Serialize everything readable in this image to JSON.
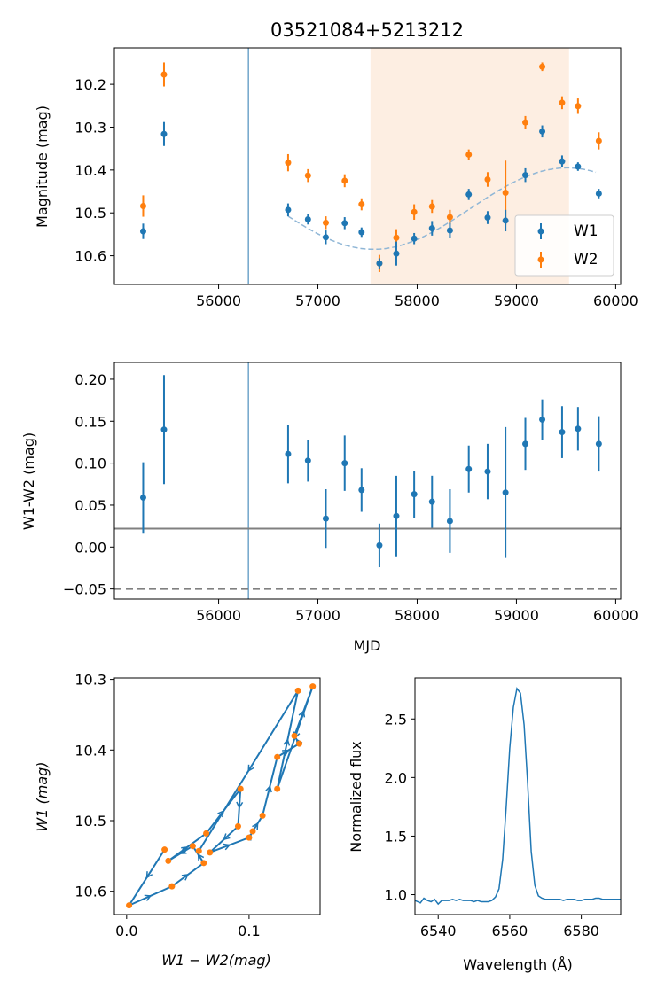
{
  "colors": {
    "w1": "#1f77b4",
    "w2": "#ff7f0e",
    "shade": "#fdeee2",
    "vline": "#4d8fbd",
    "ref_line": "#808080",
    "fit": "#8fb6d6"
  },
  "chart_data": [
    {
      "type": "scatter",
      "title": "03521084+5213212",
      "xlabel": "",
      "ylabel": "Magnitude (mag)",
      "xlim": [
        54950,
        60050
      ],
      "ylim": [
        10.667,
        10.115
      ],
      "y_inverted": true,
      "xticks": [
        56000,
        57000,
        58000,
        59000,
        60000
      ],
      "yticks": [
        10.2,
        10.3,
        10.4,
        10.5,
        10.6
      ],
      "ytick_labels": [
        "10.2",
        "10.3",
        "10.4",
        "10.5",
        "10.6"
      ],
      "legend_position": "lower right",
      "shaded_x_range": [
        57530,
        59530
      ],
      "vertical_line_x": 56300,
      "fit_curve": {
        "style": "dashed",
        "x_start": 56700,
        "x_end": 59800,
        "mid": 10.49,
        "amplitude": 0.095,
        "period": 3900,
        "phase_x": 57560
      },
      "series": [
        {
          "name": "W1",
          "x": [
            55240,
            55450,
            56700,
            56900,
            57080,
            57270,
            57440,
            57620,
            57790,
            57970,
            58150,
            58330,
            58520,
            58710,
            58890,
            59090,
            59260,
            59460,
            59620,
            59830
          ],
          "y": [
            10.543,
            10.316,
            10.493,
            10.515,
            10.557,
            10.524,
            10.545,
            10.618,
            10.595,
            10.56,
            10.536,
            10.541,
            10.457,
            10.511,
            10.518,
            10.412,
            10.31,
            10.38,
            10.392,
            10.455
          ],
          "yerr": [
            0.018,
            0.028,
            0.015,
            0.012,
            0.016,
            0.014,
            0.011,
            0.012,
            0.028,
            0.013,
            0.017,
            0.018,
            0.013,
            0.015,
            0.025,
            0.016,
            0.014,
            0.014,
            0.01,
            0.011
          ]
        },
        {
          "name": "W2",
          "x": [
            55240,
            55450,
            56700,
            56900,
            57080,
            57270,
            57440,
            57620,
            57790,
            57970,
            58150,
            58330,
            58520,
            58710,
            58890,
            59090,
            59260,
            59460,
            59620,
            59830
          ],
          "y": [
            10.484,
            10.177,
            10.383,
            10.413,
            10.523,
            10.425,
            10.48,
            10.618,
            10.558,
            10.498,
            10.485,
            10.51,
            10.364,
            10.422,
            10.453,
            10.289,
            10.159,
            10.243,
            10.251,
            10.332
          ],
          "yerr": [
            0.025,
            0.028,
            0.02,
            0.015,
            0.015,
            0.015,
            0.014,
            0.02,
            0.02,
            0.018,
            0.015,
            0.017,
            0.012,
            0.017,
            0.075,
            0.015,
            0.01,
            0.015,
            0.018,
            0.02
          ]
        }
      ]
    },
    {
      "type": "scatter",
      "title": "",
      "xlabel": "MJD",
      "ylabel": "W1-W2 (mag)",
      "xlim": [
        54950,
        60050
      ],
      "ylim": [
        -0.062,
        0.22
      ],
      "xticks": [
        56000,
        57000,
        58000,
        59000,
        60000
      ],
      "yticks": [
        -0.05,
        0.0,
        0.05,
        0.1,
        0.15,
        0.2
      ],
      "ytick_labels": [
        "−0.05",
        "0.00",
        "0.05",
        "0.10",
        "0.15",
        "0.20"
      ],
      "vertical_line_x": 56300,
      "hline_solid_y": 0.022,
      "hline_dashed_y": -0.05,
      "series": [
        {
          "name": "",
          "x": [
            55240,
            55450,
            56700,
            56900,
            57080,
            57270,
            57440,
            57620,
            57790,
            57970,
            58150,
            58330,
            58520,
            58710,
            58890,
            59090,
            59260,
            59460,
            59620,
            59830
          ],
          "y": [
            0.059,
            0.14,
            0.111,
            0.103,
            0.034,
            0.1,
            0.068,
            0.002,
            0.037,
            0.063,
            0.054,
            0.031,
            0.093,
            0.09,
            0.065,
            0.123,
            0.152,
            0.137,
            0.141,
            0.123
          ],
          "yerr": [
            0.042,
            0.065,
            0.035,
            0.025,
            0.035,
            0.033,
            0.026,
            0.026,
            0.048,
            0.028,
            0.031,
            0.038,
            0.028,
            0.033,
            0.078,
            0.031,
            0.024,
            0.031,
            0.026,
            0.033
          ]
        }
      ]
    },
    {
      "type": "line",
      "title": "",
      "xlabel": "W1 − W2(mag)",
      "ylabel": "W1 (mag)",
      "xlim": [
        -0.01,
        0.158
      ],
      "ylim": [
        10.633,
        10.298
      ],
      "y_inverted": true,
      "xticks": [
        0.0,
        0.1
      ],
      "xtick_labels": [
        "0.0",
        "0.1"
      ],
      "yticks": [
        10.3,
        10.4,
        10.5,
        10.6
      ],
      "ytick_labels": [
        "10.3",
        "10.4",
        "10.5",
        "10.6"
      ],
      "points": [
        {
          "x": 0.031,
          "y": 10.541
        },
        {
          "x": 0.002,
          "y": 10.62
        },
        {
          "x": 0.037,
          "y": 10.593
        },
        {
          "x": 0.063,
          "y": 10.56
        },
        {
          "x": 0.054,
          "y": 10.536
        },
        {
          "x": 0.034,
          "y": 10.557
        },
        {
          "x": 0.065,
          "y": 10.518
        },
        {
          "x": 0.093,
          "y": 10.455
        },
        {
          "x": 0.091,
          "y": 10.508
        },
        {
          "x": 0.068,
          "y": 10.545
        },
        {
          "x": 0.1,
          "y": 10.524
        },
        {
          "x": 0.103,
          "y": 10.515
        },
        {
          "x": 0.111,
          "y": 10.493
        },
        {
          "x": 0.123,
          "y": 10.41
        },
        {
          "x": 0.141,
          "y": 10.391
        },
        {
          "x": 0.137,
          "y": 10.38
        },
        {
          "x": 0.152,
          "y": 10.31
        },
        {
          "x": 0.123,
          "y": 10.455
        },
        {
          "x": 0.14,
          "y": 10.316
        },
        {
          "x": 0.059,
          "y": 10.543
        }
      ]
    },
    {
      "type": "line",
      "title": "",
      "xlabel": "Wavelength (Å)",
      "ylabel": "Normalized flux",
      "xlim": [
        6533.5,
        6591
      ],
      "ylim": [
        0.83,
        2.85
      ],
      "xticks": [
        6540,
        6560,
        6580
      ],
      "yticks": [
        1.0,
        1.5,
        2.0,
        2.5
      ],
      "ytick_labels": [
        "1.0",
        "1.5",
        "2.0",
        "2.5"
      ],
      "x": [
        6533.5,
        6535,
        6536,
        6537,
        6538,
        6539,
        6540,
        6541,
        6542,
        6543,
        6544,
        6545,
        6546,
        6547,
        6548,
        6549,
        6550,
        6551,
        6552,
        6553,
        6554,
        6555,
        6556,
        6557,
        6558,
        6559,
        6560,
        6561,
        6562,
        6563,
        6564,
        6565,
        6566,
        6567,
        6568,
        6569,
        6570,
        6571,
        6572,
        6573,
        6574,
        6575,
        6576,
        6577,
        6578,
        6579,
        6580,
        6581,
        6582,
        6583,
        6584,
        6585,
        6586,
        6587,
        6588,
        6589,
        6590,
        6591
      ],
      "y": [
        0.95,
        0.93,
        0.97,
        0.95,
        0.94,
        0.96,
        0.92,
        0.95,
        0.95,
        0.95,
        0.96,
        0.95,
        0.96,
        0.95,
        0.95,
        0.95,
        0.94,
        0.95,
        0.94,
        0.94,
        0.94,
        0.95,
        0.98,
        1.05,
        1.3,
        1.75,
        2.25,
        2.6,
        2.76,
        2.72,
        2.45,
        1.95,
        1.37,
        1.08,
        0.99,
        0.97,
        0.96,
        0.96,
        0.96,
        0.96,
        0.96,
        0.95,
        0.96,
        0.96,
        0.96,
        0.95,
        0.95,
        0.96,
        0.96,
        0.96,
        0.97,
        0.97,
        0.96,
        0.96,
        0.96,
        0.96,
        0.96,
        0.96
      ]
    }
  ]
}
